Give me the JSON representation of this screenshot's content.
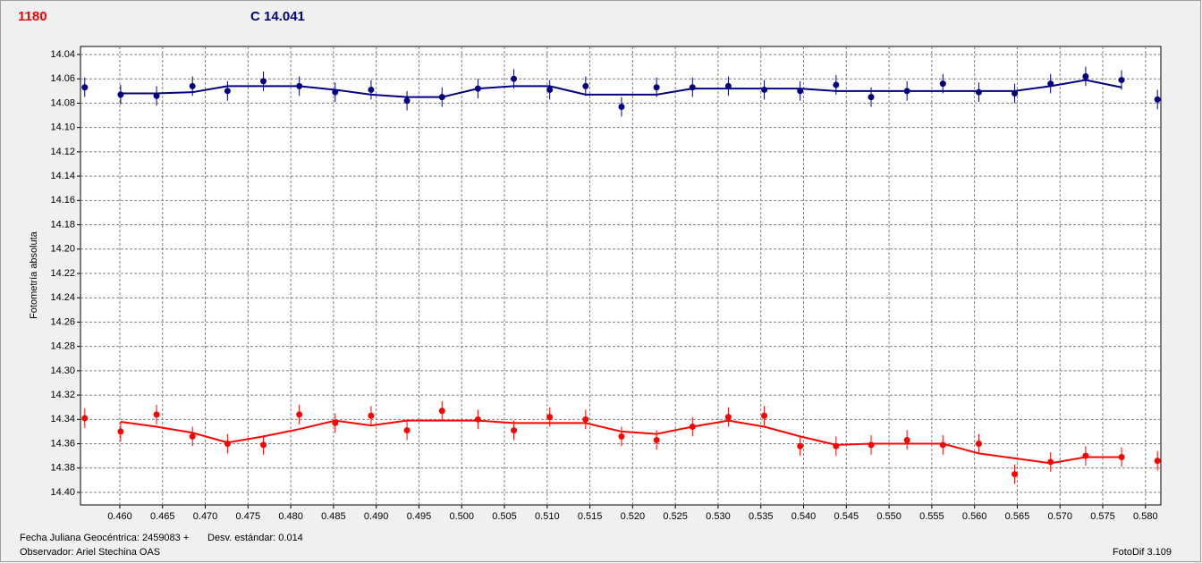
{
  "chart_data": {
    "type": "scatter",
    "y_label": "Fotometría absoluta",
    "footer_left_1": "Fecha Juliana Geocéntrica: 2459083 +",
    "footer_left_2": "Desv. estándar: 0.014",
    "footer_observer": "Observador: Ariel Stechina OAS",
    "footer_right": "FotoDif 3.109",
    "x": [
      0.4559,
      0.4601,
      0.4643,
      0.4685,
      0.4726,
      0.4768,
      0.481,
      0.4852,
      0.4894,
      0.4936,
      0.4977,
      0.5019,
      0.5061,
      0.5103,
      0.5145,
      0.5187,
      0.5228,
      0.527,
      0.5312,
      0.5354,
      0.5396,
      0.5438,
      0.5479,
      0.5521,
      0.5563,
      0.5605,
      0.5647,
      0.5689,
      0.573,
      0.5772,
      0.5814
    ],
    "series": [
      {
        "name": "1180",
        "color": "#ff0000",
        "error": 0.008,
        "values": [
          14.339,
          14.35,
          14.336,
          14.354,
          14.36,
          14.361,
          14.336,
          14.343,
          14.337,
          14.349,
          14.333,
          14.34,
          14.349,
          14.338,
          14.34,
          14.354,
          14.357,
          14.346,
          14.338,
          14.337,
          14.362,
          14.362,
          14.361,
          14.357,
          14.361,
          14.36,
          14.385,
          14.375,
          14.37,
          14.371,
          14.374
        ],
        "fit": [
          null,
          14.342,
          14.346,
          14.351,
          14.359,
          14.354,
          14.348,
          14.341,
          14.345,
          14.341,
          14.341,
          14.341,
          14.343,
          14.343,
          14.343,
          14.35,
          14.352,
          14.346,
          14.341,
          14.346,
          14.354,
          14.361,
          14.36,
          14.36,
          14.36,
          14.368,
          14.372,
          14.376,
          14.371,
          14.371,
          null
        ]
      },
      {
        "name": "C 14.041",
        "color": "#000080",
        "error": 0.008,
        "values": [
          14.067,
          14.073,
          14.074,
          14.066,
          14.07,
          14.062,
          14.066,
          14.071,
          14.069,
          14.078,
          14.075,
          14.068,
          14.06,
          14.069,
          14.066,
          14.083,
          14.067,
          14.067,
          14.066,
          14.069,
          14.07,
          14.065,
          14.075,
          14.07,
          14.064,
          14.071,
          14.072,
          14.064,
          14.058,
          14.061,
          14.077
        ],
        "fit": [
          null,
          14.072,
          14.072,
          14.071,
          14.066,
          14.066,
          14.066,
          14.069,
          14.073,
          14.075,
          14.075,
          14.068,
          14.066,
          14.066,
          14.073,
          14.073,
          14.073,
          14.068,
          14.068,
          14.068,
          14.068,
          14.07,
          14.07,
          14.07,
          14.07,
          14.07,
          14.07,
          14.066,
          14.061,
          14.067,
          null
        ]
      }
    ],
    "xlim": [
      0.4554,
      0.5818
    ],
    "ylim": [
      14.4103,
      14.0334
    ],
    "xticks": [
      {
        "value": 0.46,
        "label": "0.460"
      },
      0.465,
      {
        "value": 0.47,
        "label": "0.470"
      },
      0.475,
      {
        "value": 0.48,
        "label": "0.480"
      },
      0.485,
      {
        "value": 0.49,
        "label": "0.490"
      },
      0.495,
      {
        "value": 0.5,
        "label": "0.500"
      },
      0.505,
      {
        "value": 0.51,
        "label": "0.510"
      },
      0.515,
      {
        "value": 0.52,
        "label": "0.520"
      },
      0.525,
      {
        "value": 0.53,
        "label": "0.530"
      },
      0.535,
      {
        "value": 0.54,
        "label": "0.540"
      },
      0.545,
      {
        "value": 0.55,
        "label": "0.550"
      },
      0.555,
      {
        "value": 0.56,
        "label": "0.560"
      },
      0.565,
      {
        "value": 0.57,
        "label": "0.570"
      },
      0.575,
      {
        "value": 0.58,
        "label": "0.580"
      }
    ],
    "yticks": [
      14.04,
      14.06,
      14.08,
      {
        "value": 14.1,
        "label": "14.10"
      },
      14.12,
      14.14,
      14.16,
      14.18,
      {
        "value": 14.2,
        "label": "14.20"
      },
      14.22,
      14.24,
      14.26,
      14.28,
      {
        "value": 14.3,
        "label": "14.30"
      },
      14.32,
      14.34,
      14.36,
      14.38,
      {
        "value": 14.4,
        "label": "14.40"
      }
    ],
    "grid": true
  }
}
